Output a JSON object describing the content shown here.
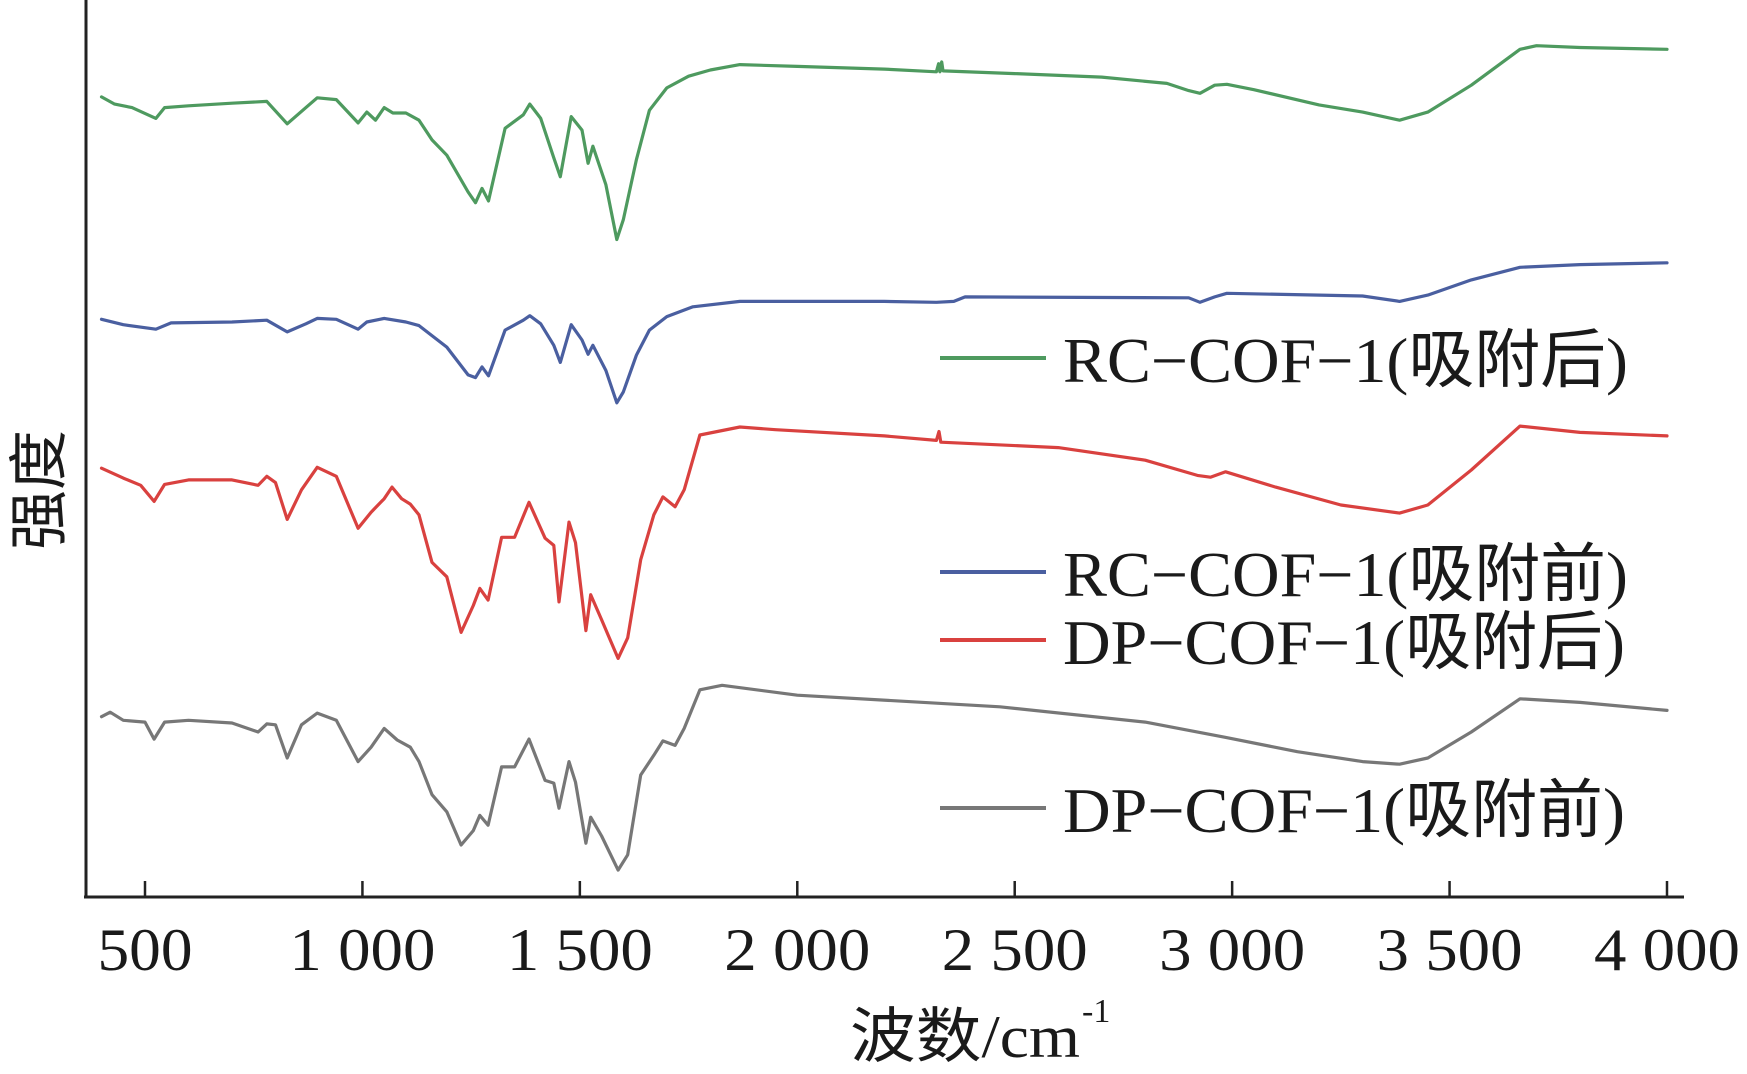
{
  "chart_data": {
    "type": "line",
    "title": "",
    "xlabel": "波数/cm",
    "xlabel_superscript": "-1",
    "ylabel": "强度",
    "xlim": [
      380,
      4030
    ],
    "ylim": [
      0,
      100
    ],
    "y_units": "a.u. (relative, no tick labels)",
    "grid": false,
    "legend_position": "right",
    "x_ticks": [
      500,
      1000,
      1500,
      2000,
      2500,
      3000,
      3500,
      4000
    ],
    "x_tick_labels": [
      "500",
      "1 000",
      "1 500",
      "2 000",
      "2 500",
      "3 000",
      "3 500",
      "4 000"
    ],
    "series": [
      {
        "name": "RC−COF−1(吸附后)",
        "color": "#4e9a5f",
        "x": [
          400,
          430,
          470,
          525,
          545,
          600,
          700,
          780,
          827,
          870,
          896,
          940,
          990,
          1010,
          1030,
          1050,
          1070,
          1100,
          1130,
          1160,
          1194,
          1243,
          1260,
          1275,
          1290,
          1328,
          1370,
          1385,
          1410,
          1440,
          1455,
          1480,
          1505,
          1519,
          1530,
          1560,
          1585,
          1600,
          1630,
          1660,
          1700,
          1750,
          1800,
          1868,
          2000,
          2200,
          2320,
          2325,
          2328,
          2332,
          2335,
          2500,
          2700,
          2850,
          2900,
          2926,
          2960,
          2988,
          3050,
          3200,
          3300,
          3385,
          3450,
          3550,
          3662,
          3700,
          3800,
          4000
        ],
        "y": [
          89.2,
          88.4,
          88.0,
          86.8,
          88.0,
          88.2,
          88.5,
          88.7,
          86.2,
          88.0,
          89.1,
          88.9,
          86.3,
          87.5,
          86.6,
          88.0,
          87.4,
          87.4,
          86.6,
          84.4,
          82.7,
          78.6,
          77.4,
          79.0,
          77.6,
          85.7,
          87.2,
          88.4,
          86.8,
          82.4,
          80.3,
          87.0,
          85.5,
          81.8,
          83.7,
          79.4,
          73.3,
          75.5,
          82.2,
          87.7,
          90.2,
          91.5,
          92.2,
          92.8,
          92.6,
          92.3,
          92.0,
          92.9,
          92.0,
          93.1,
          92.1,
          91.8,
          91.4,
          90.7,
          89.9,
          89.6,
          90.5,
          90.6,
          90.0,
          88.3,
          87.5,
          86.6,
          87.5,
          90.5,
          94.5,
          94.9,
          94.7,
          94.5
        ]
      },
      {
        "name": "RC−COF−1(吸附前)",
        "color": "#4a5fa0",
        "x": [
          400,
          450,
          525,
          560,
          700,
          780,
          827,
          870,
          896,
          940,
          990,
          1010,
          1050,
          1100,
          1130,
          1194,
          1243,
          1260,
          1275,
          1290,
          1328,
          1370,
          1385,
          1410,
          1440,
          1455,
          1480,
          1505,
          1519,
          1530,
          1560,
          1585,
          1600,
          1630,
          1660,
          1700,
          1760,
          1868,
          2200,
          2320,
          2360,
          2386,
          2900,
          2926,
          2960,
          2988,
          3300,
          3385,
          3450,
          3550,
          3662,
          3800,
          4000
        ],
        "y": [
          64.4,
          63.8,
          63.3,
          64.0,
          64.1,
          64.3,
          63.0,
          63.9,
          64.5,
          64.4,
          63.3,
          64.1,
          64.5,
          64.1,
          63.7,
          61.3,
          58.2,
          57.9,
          59.1,
          58.1,
          63.2,
          64.3,
          64.8,
          63.9,
          61.5,
          59.6,
          63.8,
          62.1,
          60.5,
          61.5,
          58.7,
          55.1,
          56.3,
          60.4,
          63.2,
          64.7,
          65.8,
          66.4,
          66.4,
          66.3,
          66.4,
          66.9,
          66.8,
          66.3,
          66.9,
          67.3,
          67.0,
          66.4,
          67.1,
          68.8,
          70.2,
          70.5,
          70.7
        ]
      },
      {
        "name": "DP−COF−1(吸附后)",
        "color": "#d9413f",
        "x": [
          400,
          450,
          490,
          521,
          545,
          600,
          700,
          760,
          780,
          800,
          827,
          860,
          896,
          940,
          990,
          1020,
          1050,
          1068,
          1090,
          1110,
          1130,
          1160,
          1194,
          1227,
          1255,
          1270,
          1289,
          1320,
          1350,
          1383,
          1420,
          1440,
          1452,
          1475,
          1490,
          1514,
          1525,
          1550,
          1588,
          1610,
          1640,
          1670,
          1691,
          1719,
          1740,
          1776,
          1868,
          1950,
          2200,
          2320,
          2326,
          2330,
          2600,
          2800,
          2920,
          2950,
          2985,
          3100,
          3250,
          3385,
          3450,
          3550,
          3662,
          3800,
          4000
        ],
        "y": [
          47.8,
          46.7,
          45.9,
          44.1,
          46.0,
          46.5,
          46.5,
          45.9,
          46.9,
          46.2,
          42.1,
          45.4,
          47.9,
          46.9,
          41.1,
          42.9,
          44.4,
          45.7,
          44.4,
          43.8,
          42.6,
          37.3,
          35.7,
          29.5,
          32.5,
          34.4,
          33.1,
          40.1,
          40.1,
          44.0,
          40.0,
          39.2,
          32.9,
          41.8,
          39.5,
          29.7,
          33.7,
          30.9,
          26.6,
          28.9,
          37.6,
          42.6,
          44.6,
          43.5,
          45.4,
          51.5,
          52.4,
          52.1,
          51.4,
          50.9,
          51.9,
          50.7,
          50.1,
          48.7,
          47.0,
          46.8,
          47.4,
          45.7,
          43.7,
          42.8,
          43.7,
          47.6,
          52.5,
          51.8,
          51.4
        ]
      },
      {
        "name": "DP−COF−1(吸附前)",
        "color": "#777777",
        "x": [
          400,
          420,
          450,
          500,
          521,
          545,
          600,
          700,
          760,
          780,
          800,
          827,
          860,
          896,
          940,
          990,
          1020,
          1050,
          1080,
          1110,
          1130,
          1160,
          1194,
          1227,
          1255,
          1270,
          1289,
          1320,
          1350,
          1383,
          1420,
          1440,
          1452,
          1475,
          1490,
          1514,
          1525,
          1550,
          1588,
          1610,
          1640,
          1670,
          1691,
          1719,
          1740,
          1776,
          1827,
          2000,
          2466,
          2800,
          2984,
          3150,
          3300,
          3385,
          3450,
          3550,
          3662,
          3800,
          4000
        ],
        "y": [
          20.1,
          20.6,
          19.7,
          19.5,
          17.6,
          19.5,
          19.7,
          19.4,
          18.4,
          19.3,
          19.2,
          15.5,
          19.2,
          20.5,
          19.7,
          15.1,
          16.7,
          18.8,
          17.5,
          16.7,
          15.1,
          11.4,
          9.5,
          5.8,
          7.4,
          9.1,
          8.0,
          14.5,
          14.5,
          17.6,
          13.0,
          12.7,
          9.9,
          15.1,
          12.8,
          6.0,
          8.9,
          6.8,
          3.0,
          4.7,
          13.6,
          15.8,
          17.4,
          16.9,
          18.8,
          23.1,
          23.6,
          22.5,
          21.2,
          19.5,
          17.8,
          16.2,
          15.1,
          14.8,
          15.5,
          18.4,
          22.1,
          21.7,
          20.8
        ]
      }
    ],
    "legend": [
      {
        "label": "RC−COF−1(吸附后)",
        "color": "#4e9a5f"
      },
      {
        "label": "RC−COF−1(吸附前)",
        "color": "#4a5fa0"
      },
      {
        "label": "DP−COF−1(吸附后)",
        "color": "#d9413f"
      },
      {
        "label": "DP−COF−1(吸附前)",
        "color": "#777777"
      }
    ]
  }
}
